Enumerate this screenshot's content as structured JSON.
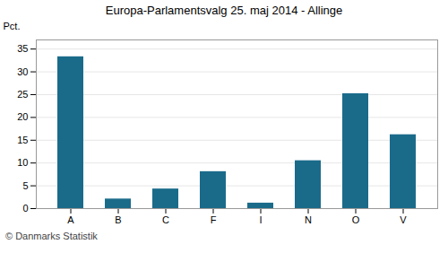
{
  "chart_data": {
    "type": "bar",
    "title": "Europa-Parlamentsvalg 25. maj 2014 - Allinge",
    "categories": [
      "A",
      "B",
      "C",
      "F",
      "I",
      "N",
      "O",
      "V"
    ],
    "values": [
      33.3,
      2.1,
      4.3,
      8.1,
      1.2,
      10.5,
      25.2,
      16.2
    ],
    "color": "#1a6b8a",
    "ylabel": "Pct.",
    "ylim": [
      0,
      37
    ],
    "yticks": [
      0,
      5,
      10,
      15,
      20,
      25,
      30,
      35
    ],
    "grid": true,
    "annotations": [
      "© Danmarks Statistik"
    ]
  }
}
